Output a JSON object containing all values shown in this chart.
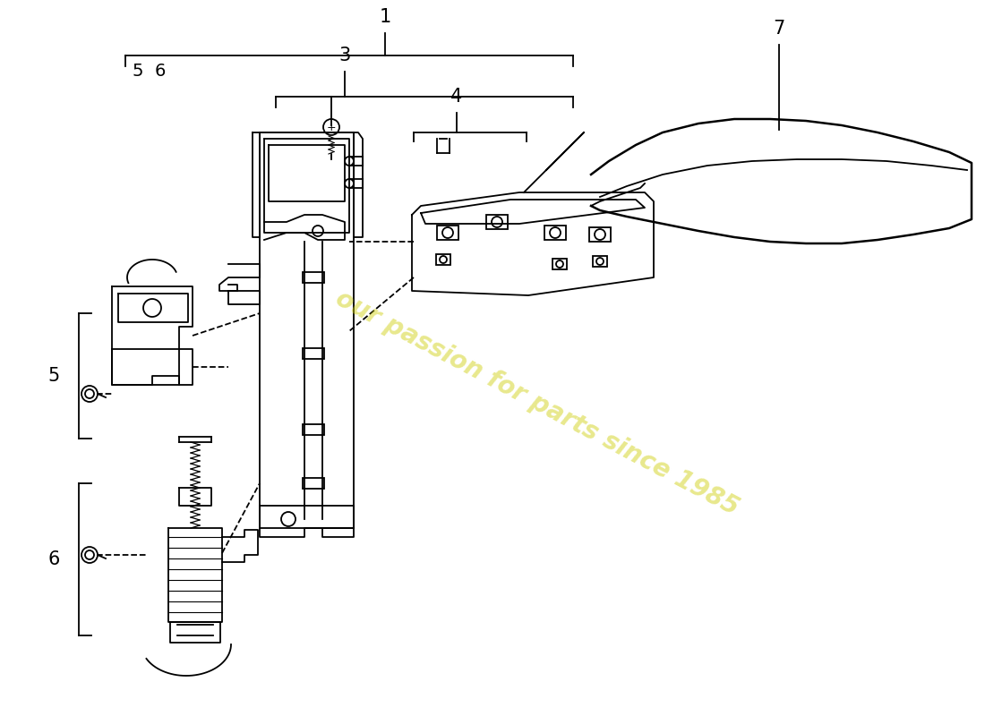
{
  "background_color": "#ffffff",
  "line_color": "#000000",
  "watermark_text": "our passion for parts since 1985",
  "watermark_color": "#cccc00",
  "watermark_alpha": 0.45,
  "lw": 1.3,
  "fig_w": 11.0,
  "fig_h": 8.0,
  "dpi": 100
}
